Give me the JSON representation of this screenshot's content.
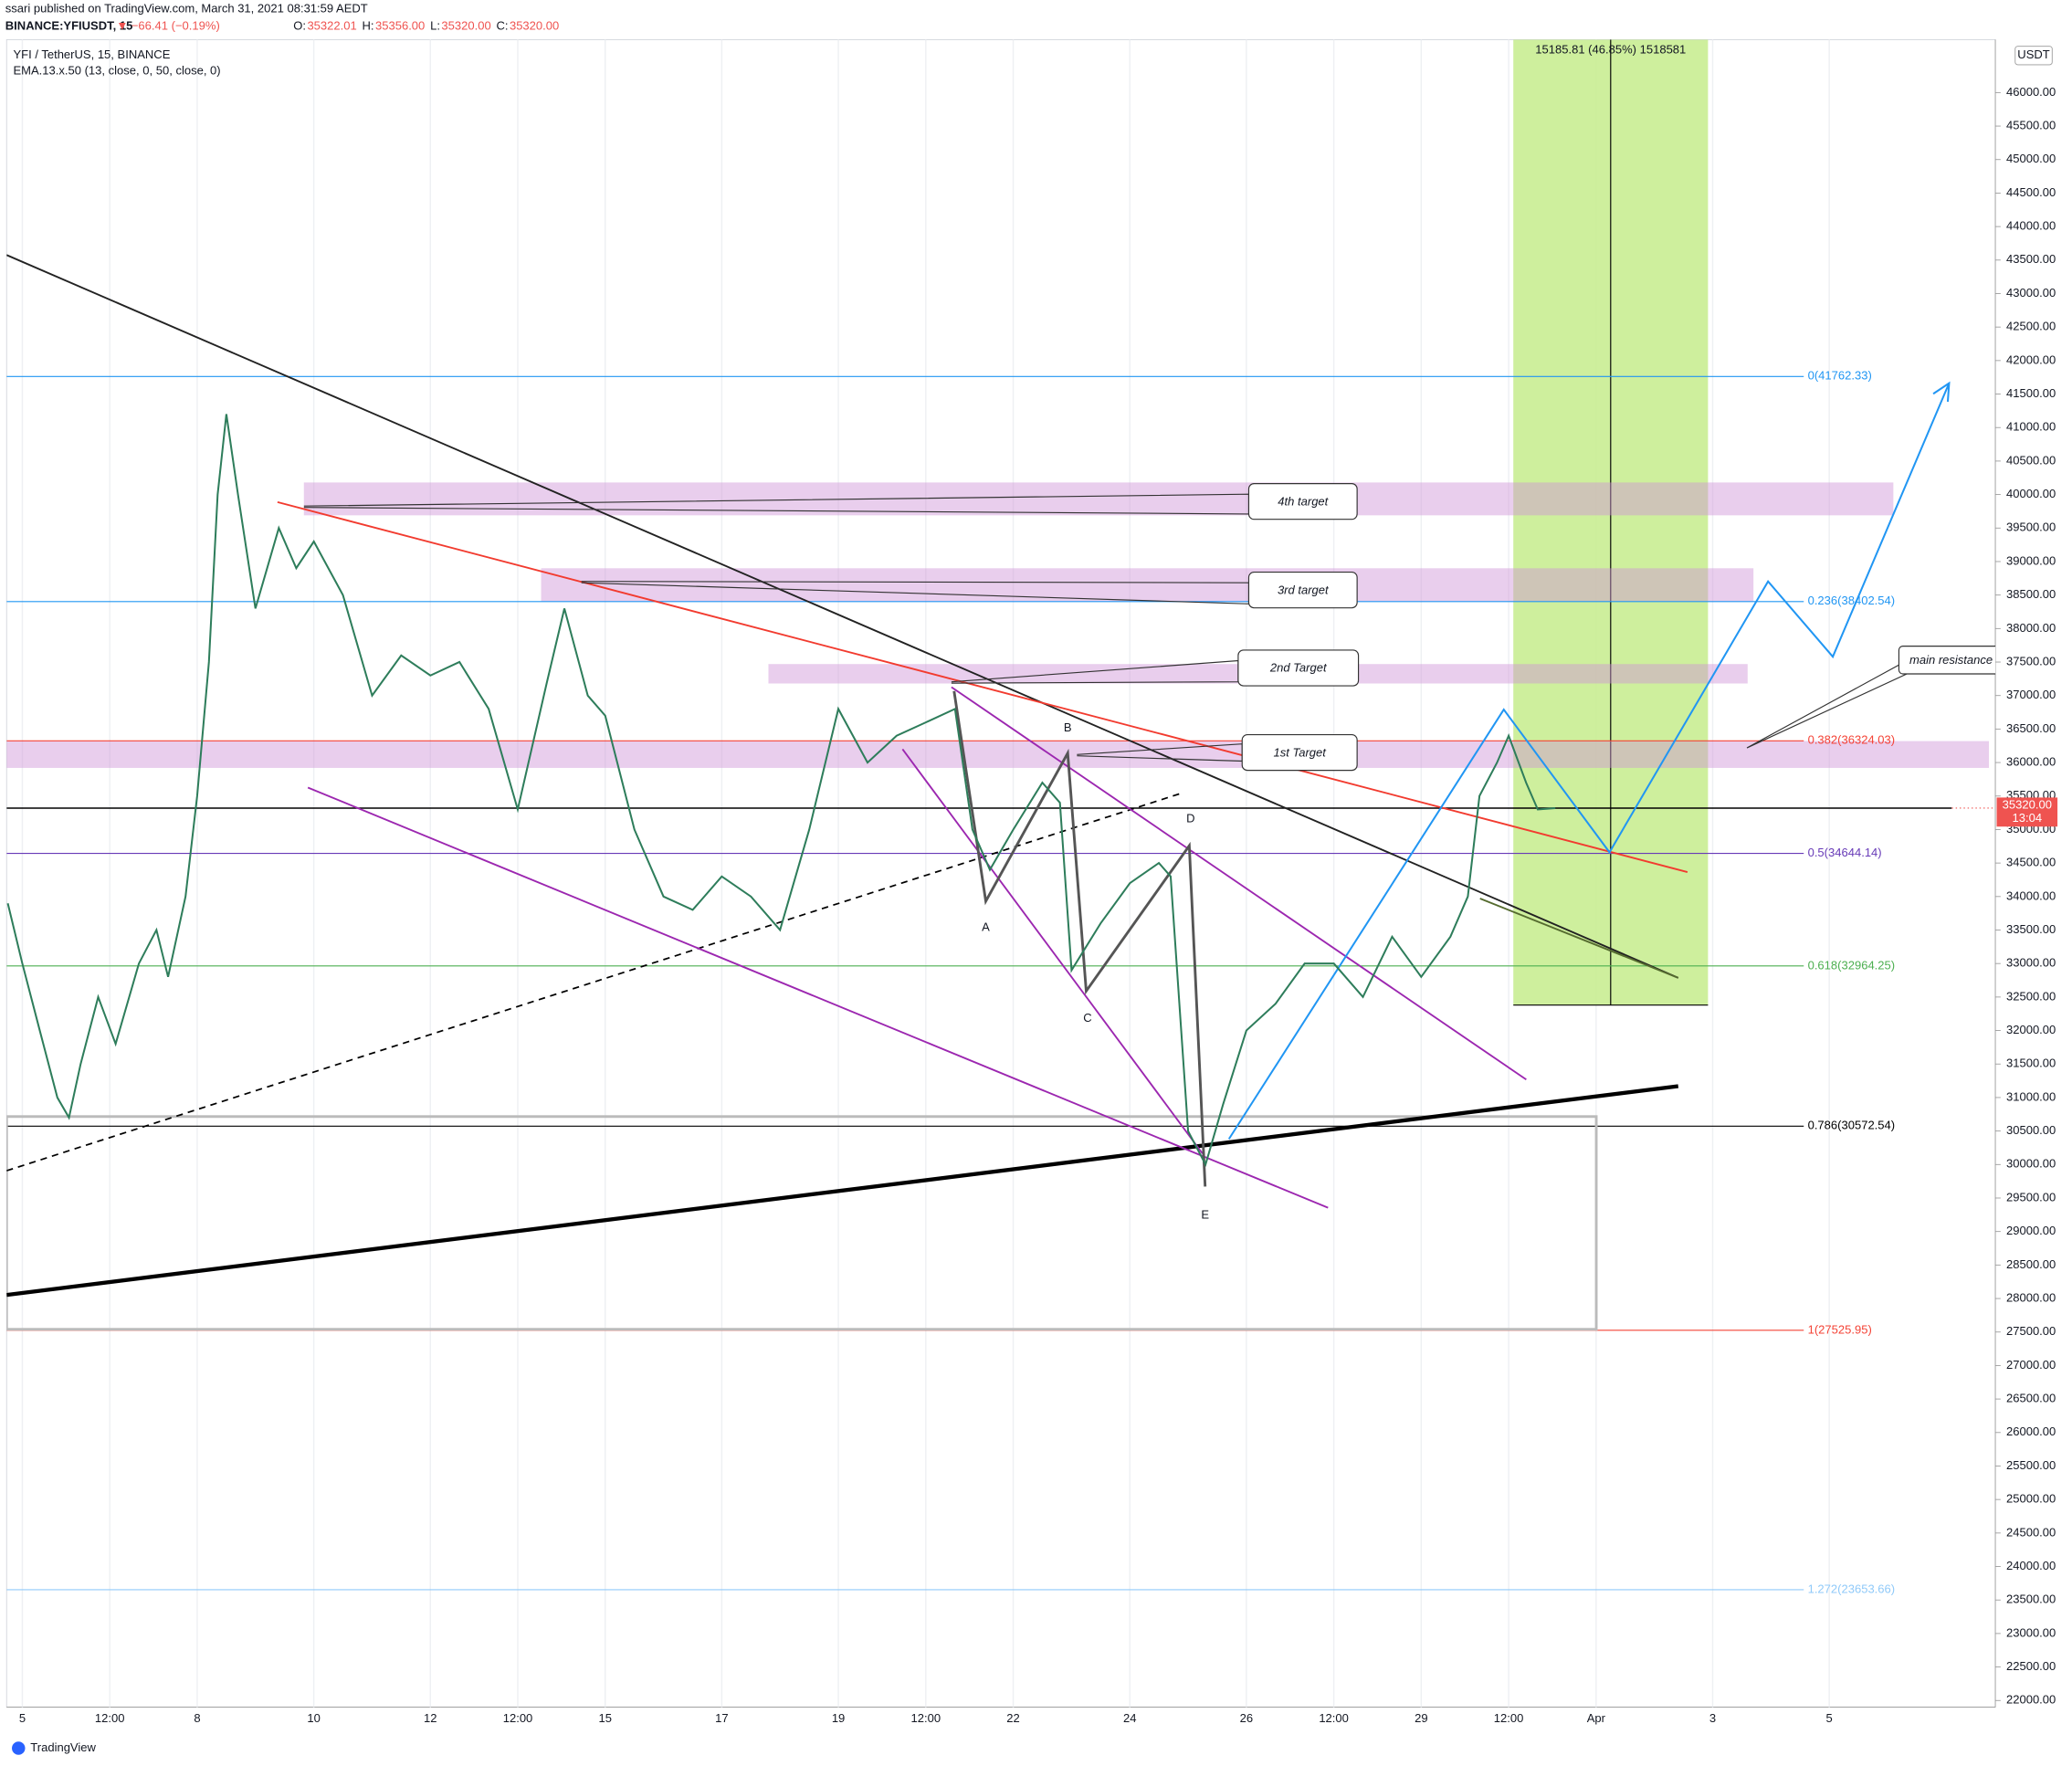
{
  "header": {
    "publisher": "ssari published on TradingView.com, March 31, 2021 08:31:59 AEDT",
    "symbol": "BINANCE:YFIUSDT, 15",
    "change": "▼ −66.41 (−0.19%)",
    "ohlc": [
      {
        "key": "O:",
        "text": "35322.01"
      },
      {
        "key": "H:",
        "text": "35356.00"
      },
      {
        "key": "L:",
        "text": "35320.00"
      },
      {
        "key": "C:",
        "text": "35320.00"
      }
    ]
  },
  "chart_data": {
    "type": "line",
    "title": "YFI / TetherUS, 15, BINANCE",
    "subtitle": "EMA.13.x.50 (13, close, 0, 50, close, 0)",
    "unit": "USDT",
    "color": "#2e7d5b",
    "x": [
      4.75,
      5,
      5.3,
      5.6,
      5.8,
      6,
      6.3,
      6.6,
      7,
      7.3,
      7.5,
      7.8,
      8,
      8.2,
      8.35,
      8.5,
      8.7,
      9,
      9.4,
      9.7,
      10,
      10.5,
      11,
      11.5,
      12,
      12.5,
      13,
      13.5,
      14,
      14.3,
      14.7,
      15,
      15.5,
      16,
      16.5,
      17,
      17.5,
      18,
      18.5,
      19,
      19.5,
      20,
      20.5,
      21,
      21.3,
      21.6,
      22,
      22.5,
      22.8,
      23,
      23.5,
      24,
      24.5,
      24.7,
      25,
      25.3,
      25.6,
      26,
      26.5,
      27,
      27.5,
      28,
      28.5,
      29,
      29.5,
      29.8,
      30,
      30.3,
      30.5,
      30.8,
      31,
      31.3
    ],
    "values": [
      33900,
      33000,
      32000,
      31000,
      30700,
      31500,
      32500,
      31800,
      33000,
      33500,
      32800,
      34000,
      35500,
      37500,
      40000,
      41200,
      40000,
      38300,
      39500,
      38900,
      39300,
      38500,
      37000,
      37600,
      37300,
      37500,
      36800,
      35300,
      37200,
      38300,
      37000,
      36700,
      35000,
      34000,
      33800,
      34300,
      34000,
      33500,
      35000,
      36800,
      36000,
      36400,
      36600,
      36800,
      35000,
      34400,
      35000,
      35700,
      35400,
      32900,
      33600,
      34200,
      34500,
      34300,
      30500,
      30000,
      30900,
      32000,
      32400,
      33000,
      33000,
      32500,
      33400,
      32800,
      33400,
      34000,
      35500,
      36000,
      36400,
      35700,
      35300,
      35320
    ],
    "xlim": [
      4.73,
      38.85
    ],
    "ylim": [
      21900,
      46790
    ],
    "xticks": [
      5,
      {
        "value": 6.5,
        "label": "12:00"
      },
      8,
      10,
      12,
      {
        "value": 13.5,
        "label": "12:00"
      },
      15,
      17,
      19,
      {
        "value": 20.5,
        "label": "12:00"
      },
      22,
      24,
      26,
      {
        "value": 27.5,
        "label": "12:00"
      },
      29,
      {
        "value": 30.5,
        "label": "12:00"
      },
      {
        "value": 32,
        "label": "Apr"
      },
      {
        "value": 34,
        "label": "3"
      },
      {
        "value": 36,
        "label": "5"
      }
    ],
    "yticks": [
      {
        "value": 22000,
        "label": "22000.00"
      },
      {
        "value": 22500,
        "label": "22500.00"
      },
      {
        "value": 23000,
        "label": "23000.00"
      },
      {
        "value": 23500,
        "label": "23500.00"
      },
      {
        "value": 24000,
        "label": "24000.00"
      },
      {
        "value": 24500,
        "label": "24500.00"
      },
      {
        "value": 25000,
        "label": "25000.00"
      },
      {
        "value": 25500,
        "label": "25500.00"
      },
      {
        "value": 26000,
        "label": "26000.00"
      },
      {
        "value": 26500,
        "label": "26500.00"
      },
      {
        "value": 27000,
        "label": "27000.00"
      },
      {
        "value": 27500,
        "label": "27500.00"
      },
      {
        "value": 28000,
        "label": "28000.00"
      },
      {
        "value": 28500,
        "label": "28500.00"
      },
      {
        "value": 29000,
        "label": "29000.00"
      },
      {
        "value": 29500,
        "label": "29500.00"
      },
      {
        "value": 30000,
        "label": "30000.00"
      },
      {
        "value": 30500,
        "label": "30500.00"
      },
      {
        "value": 31000,
        "label": "31000.00"
      },
      {
        "value": 31500,
        "label": "31500.00"
      },
      {
        "value": 32000,
        "label": "32000.00"
      },
      {
        "value": 32500,
        "label": "32500.00"
      },
      {
        "value": 33000,
        "label": "33000.00"
      },
      {
        "value": 33500,
        "label": "33500.00"
      },
      {
        "value": 34000,
        "label": "34000.00"
      },
      {
        "value": 34500,
        "label": "34500.00"
      },
      {
        "value": 35000,
        "label": "35000.00"
      },
      {
        "value": 35500,
        "label": "35500.00"
      },
      {
        "value": 36000,
        "label": "36000.00"
      },
      {
        "value": 36500,
        "label": "36500.00"
      },
      {
        "value": 37000,
        "label": "37000.00"
      },
      {
        "value": 37500,
        "label": "37500.00"
      },
      {
        "value": 38000,
        "label": "38000.00"
      },
      {
        "value": 38500,
        "label": "38500.00"
      },
      {
        "value": 39000,
        "label": "39000.00"
      },
      {
        "value": 39500,
        "label": "39500.00"
      },
      {
        "value": 40000,
        "label": "40000.00"
      },
      {
        "value": 40500,
        "label": "40500.00"
      },
      {
        "value": 41000,
        "label": "41000.00"
      },
      {
        "value": 41500,
        "label": "41500.00"
      },
      {
        "value": 42000,
        "label": "42000.00"
      },
      {
        "value": 42500,
        "label": "42500.00"
      },
      {
        "value": 43000,
        "label": "43000.00"
      },
      {
        "value": 43500,
        "label": "43500.00"
      },
      {
        "value": 44000,
        "label": "44000.00"
      },
      {
        "value": 44500,
        "label": "44500.00"
      },
      {
        "value": 45000,
        "label": "45000.00"
      },
      {
        "value": 45500,
        "label": "45500.00"
      },
      {
        "value": 46000,
        "label": "46000.00"
      }
    ],
    "grid": true,
    "last_price": {
      "value": 35320,
      "label": "35320.00",
      "countdown": "13:04",
      "color": "#ef5350"
    },
    "fib_levels": [
      {
        "value": 41762.33,
        "label": "0(41762.33)",
        "color": "#2196f3"
      },
      {
        "value": 38402.54,
        "label": "0.236(38402.54)",
        "color": "#2196f3"
      },
      {
        "value": 36324.03,
        "label": "0.382(36324.03)",
        "color": "#f44336"
      },
      {
        "value": 34644.14,
        "label": "0.5(34644.14)",
        "color": "#673ab7"
      },
      {
        "value": 32964.25,
        "label": "0.618(32964.25)",
        "color": "#4caf50"
      },
      {
        "value": 30572.54,
        "label": "0.786(30572.54)",
        "color": "#000000"
      },
      {
        "value": 27525.95,
        "label": "1(27525.95)",
        "color": "#f44336"
      },
      {
        "value": 23653.66,
        "label": "1.272(23653.66)",
        "color": "#90caf9"
      }
    ],
    "zones": [
      {
        "label": "4th target",
        "range": [
          39690,
          40180
        ],
        "x": [
          9.83,
          37.1
        ]
      },
      {
        "label": "3rd target",
        "range": [
          38400,
          38900
        ],
        "x": [
          13.9,
          34.7
        ]
      },
      {
        "label": "2nd Target",
        "range": [
          37180,
          37470
        ],
        "x": [
          17.8,
          34.6
        ]
      },
      {
        "label": "1st Target",
        "range": [
          35920,
          36320
        ],
        "x": [
          4.73,
          38.74
        ]
      }
    ],
    "zone_color": "#ce93d8",
    "measure": {
      "label": "15185.81 (46.85%) 1518581",
      "x": [
        30.58,
        33.92
      ],
      "range": [
        32380,
        46790
      ],
      "color": "#c6ec8c"
    },
    "wave_labels": [
      "A",
      "B",
      "C",
      "D",
      "E"
    ],
    "note": "main resistance"
  },
  "footer": "TradingView"
}
